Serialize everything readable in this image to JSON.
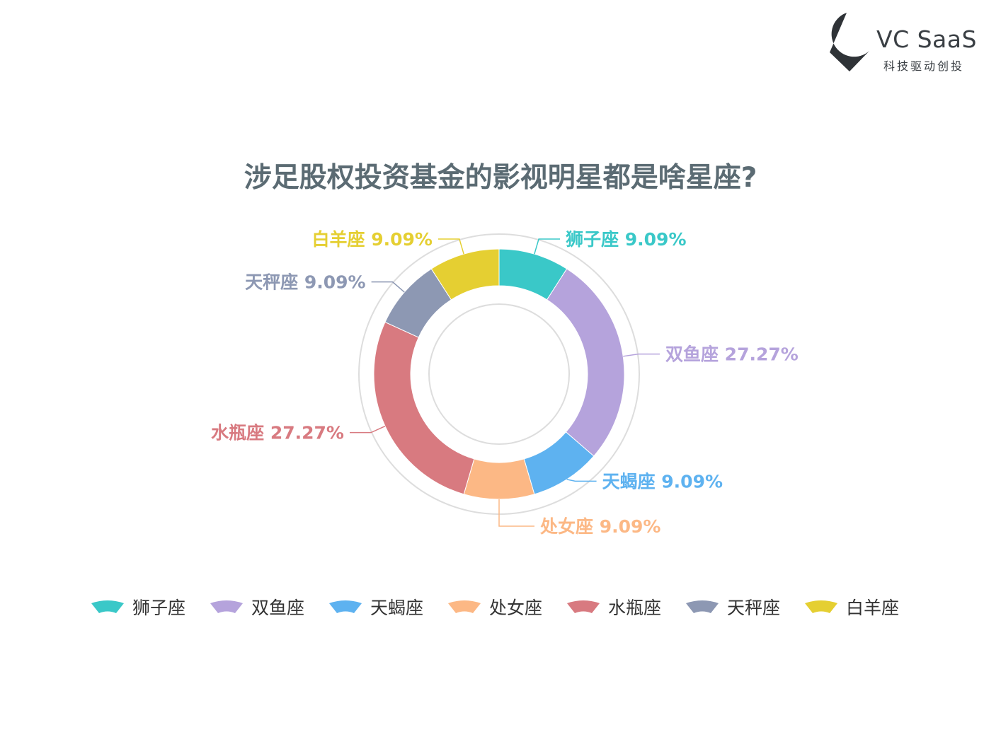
{
  "brand": {
    "name": "VC SaaS",
    "tagline": "科技驱动创投",
    "mark_color": "#2f3337"
  },
  "chart_data": {
    "type": "pie",
    "title": "涉足股权投资基金的影视明星都是啥星座?",
    "donut": true,
    "legend_position": "bottom",
    "slices": [
      {
        "name": "狮子座",
        "value": 1,
        "percent_label": "9.09%",
        "color": "#3ac8c8"
      },
      {
        "name": "双鱼座",
        "value": 3,
        "percent_label": "27.27%",
        "color": "#b5a3dc"
      },
      {
        "name": "天蝎座",
        "value": 1,
        "percent_label": "9.09%",
        "color": "#5eb2f0"
      },
      {
        "name": "处女座",
        "value": 1,
        "percent_label": "9.09%",
        "color": "#fcb885"
      },
      {
        "name": "水瓶座",
        "value": 3,
        "percent_label": "27.27%",
        "color": "#d87a80"
      },
      {
        "name": "天秤座",
        "value": 1,
        "percent_label": "9.09%",
        "color": "#8d98b3"
      },
      {
        "name": "白羊座",
        "value": 1,
        "percent_label": "9.09%",
        "color": "#e5cf32"
      }
    ]
  }
}
